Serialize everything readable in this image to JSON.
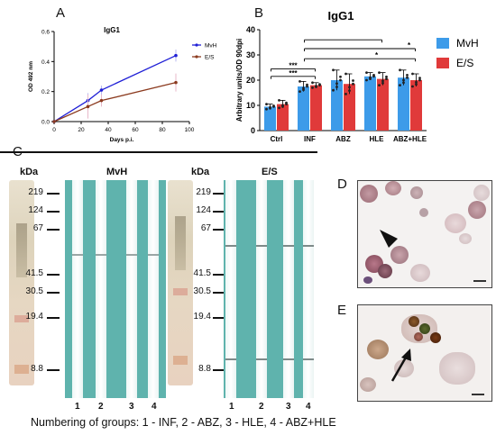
{
  "panels": {
    "a": {
      "letter": "A"
    },
    "b": {
      "letter": "B"
    },
    "c": {
      "letter": "C"
    },
    "d": {
      "letter": "D"
    },
    "e": {
      "letter": "E"
    }
  },
  "chart_data": [
    {
      "type": "line",
      "title": "IgG1",
      "xlabel": "Days p.i.",
      "ylabel": "OD 492 nm",
      "x": [
        0,
        25,
        35,
        90
      ],
      "xlim": [
        0,
        100
      ],
      "ylim": [
        0,
        0.6
      ],
      "xticks": [
        0,
        20,
        40,
        60,
        80,
        100
      ],
      "yticks": [
        0.0,
        0.2,
        0.4,
        0.6
      ],
      "series": [
        {
          "name": "MvH",
          "color": "#1f1fd6",
          "values": [
            0.0,
            0.14,
            0.21,
            0.44
          ],
          "err": [
            0.0,
            0.05,
            0.03,
            0.04
          ]
        },
        {
          "name": "E/S",
          "color": "#8b3a1e",
          "values": [
            0.0,
            0.1,
            0.14,
            0.26
          ],
          "err": [
            0.0,
            0.08,
            0.04,
            0.06
          ]
        }
      ],
      "legend": "top-right"
    },
    {
      "type": "bar",
      "title": "IgG1",
      "ylabel": "Arbitrary units/OD 90dpi",
      "categories": [
        "Ctrl",
        "INF",
        "ABZ",
        "HLE",
        "ABZ+HLE"
      ],
      "ylim": [
        0,
        40
      ],
      "yticks": [
        0,
        10,
        20,
        30,
        40
      ],
      "series": [
        {
          "name": "MvH",
          "color": "#3d9be9",
          "values": [
            9.5,
            17.5,
            20.0,
            21.5,
            21.0
          ],
          "err": [
            1.0,
            2.0,
            4.0,
            1.5,
            3.0
          ]
        },
        {
          "name": "E/S",
          "color": "#e03a3a",
          "values": [
            10.5,
            18.0,
            18.5,
            20.5,
            20.0
          ],
          "err": [
            1.5,
            1.0,
            4.0,
            2.5,
            2.5
          ]
        }
      ],
      "significance": [
        "***",
        "***",
        "*",
        "*"
      ],
      "legend": "right"
    }
  ],
  "blot": {
    "mvh_title": "MvH",
    "es_title": "E/S",
    "kda_label": "kDa",
    "markers": [
      "219",
      "124",
      "67",
      "41.5",
      "30.5",
      "19.4",
      "8.8"
    ],
    "lanes": [
      "1",
      "2",
      "3",
      "4"
    ]
  },
  "caption": "Numbering of groups: 1 - INF, 2 - ABZ, 3 - HLE, 4 - ABZ+HLE"
}
